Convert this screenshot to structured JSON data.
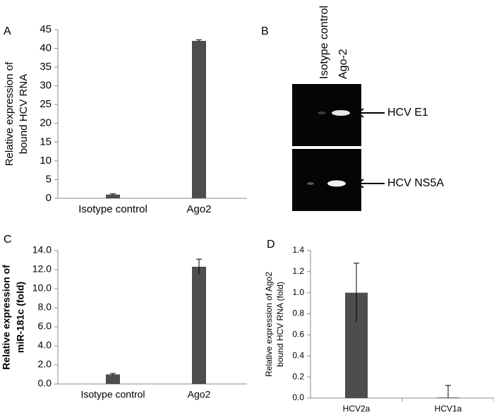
{
  "chart_data": [
    {
      "type": "bar",
      "panel": "A",
      "ylabel": [
        "Relative expression of",
        "bound  HCV RNA"
      ],
      "categories": [
        "Isotype control",
        "Ago2"
      ],
      "values": [
        1.0,
        42.0
      ],
      "errors": [
        0.2,
        0.3
      ],
      "color": "#4d4d4d",
      "ylim": [
        0,
        45
      ],
      "yticks": [
        0,
        5,
        10,
        15,
        20,
        25,
        30,
        35,
        40,
        45
      ]
    },
    {
      "type": "bar",
      "panel": "C",
      "ylabel": [
        "Relative expression of",
        "miR-181c (fold)"
      ],
      "categories": [
        "Isotype control",
        "Ago2"
      ],
      "values": [
        1.0,
        12.3
      ],
      "errors": [
        0.1,
        0.8
      ],
      "color": "#4d4d4d",
      "ylim": [
        0,
        14
      ],
      "yticks": [
        {
          "value": 0,
          "label": "0.0"
        },
        {
          "value": 2,
          "label": "2.0"
        },
        {
          "value": 4,
          "label": "4.0"
        },
        {
          "value": 6,
          "label": "6.0"
        },
        {
          "value": 8,
          "label": "8.0"
        },
        {
          "value": 10,
          "label": "10.0"
        },
        {
          "value": 12,
          "label": "12.0"
        },
        {
          "value": 14,
          "label": "14.0"
        }
      ]
    },
    {
      "type": "bar",
      "panel": "D",
      "ylabel": [
        "Relative  expression of Ago2",
        "bound HCV RNA (fold)"
      ],
      "categories": [
        "HCV2a",
        "HCV1a"
      ],
      "values": [
        1.0,
        0.005
      ],
      "errors": [
        0.28,
        0.115
      ],
      "color": "#4d4d4d",
      "ylim": [
        0,
        1.4
      ],
      "yticks": [
        {
          "value": 0,
          "label": "0.0"
        },
        {
          "value": 0.2,
          "label": "0.2"
        },
        {
          "value": 0.4,
          "label": "0.4"
        },
        {
          "value": 0.6,
          "label": "0.6"
        },
        {
          "value": 0.8,
          "label": "0.8"
        },
        {
          "value": 1.0,
          "label": "1.0"
        },
        {
          "value": 1.2,
          "label": "1.2"
        },
        {
          "value": 1.4,
          "label": "1.4"
        }
      ]
    }
  ],
  "gel": {
    "panel": "B",
    "lanes": [
      "Isotype control",
      "Ago-2"
    ],
    "bands": [
      "HCV E1",
      "HCV NS5A"
    ]
  }
}
